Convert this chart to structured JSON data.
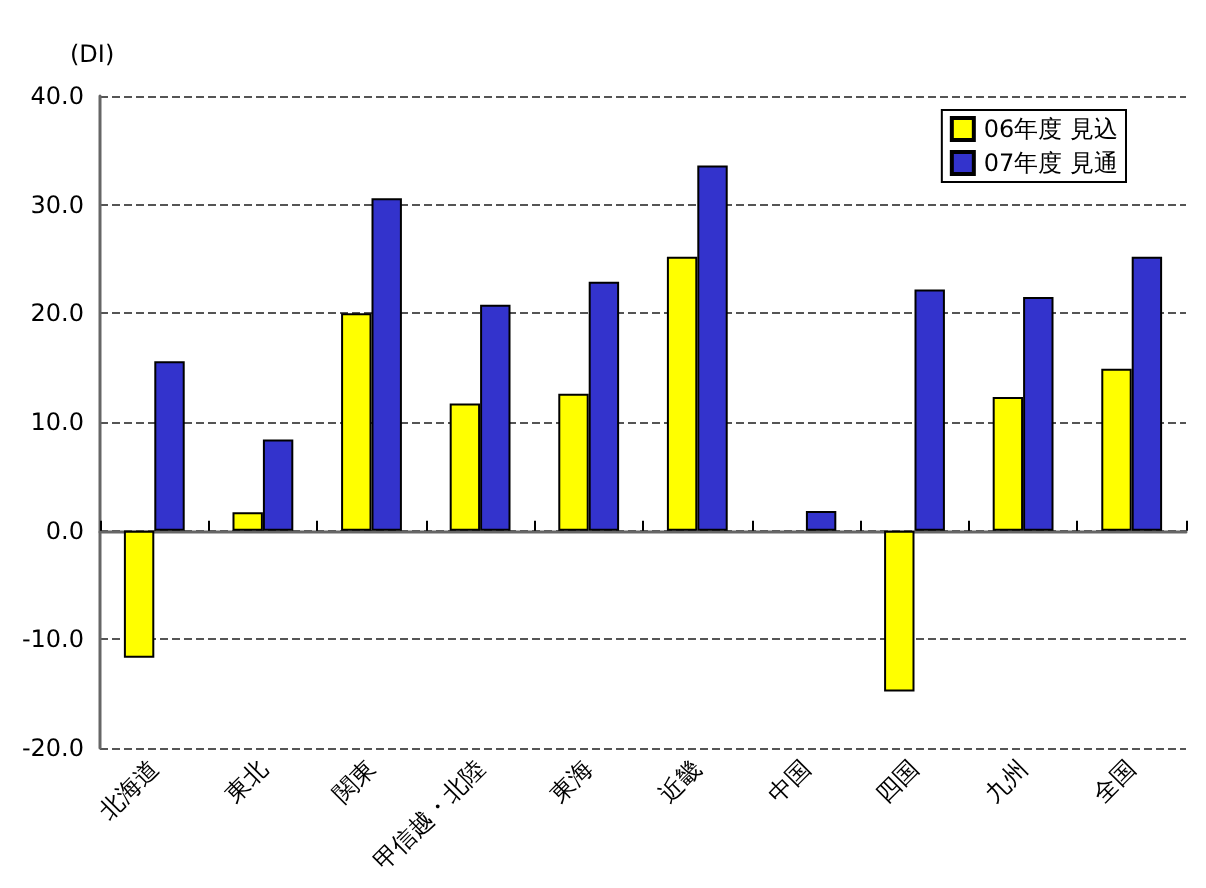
{
  "chart_data": {
    "type": "bar",
    "ylabel": "(DI)",
    "categories": [
      "北海道",
      "東北",
      "関東",
      "甲信越・北陸",
      "東海",
      "近畿",
      "中国",
      "四国",
      "九州",
      "全国"
    ],
    "series": [
      {
        "name": "06年度 見込",
        "color": "#ffff00",
        "values": [
          -11.7,
          1.7,
          20.0,
          11.7,
          12.6,
          25.2,
          null,
          -14.8,
          12.3,
          14.9
        ]
      },
      {
        "name": "07年度 見通",
        "color": "#3333cc",
        "values": [
          15.6,
          8.4,
          30.6,
          20.8,
          22.9,
          33.6,
          1.8,
          22.2,
          21.5,
          25.2
        ]
      }
    ],
    "ylim": [
      -20,
      40
    ],
    "yticks": [
      {
        "value": -20,
        "label": "-20.0"
      },
      {
        "value": -10,
        "label": "-10.0"
      },
      {
        "value": 0,
        "label": "0.0"
      },
      {
        "value": 10,
        "label": "10.0"
      },
      {
        "value": 20,
        "label": "20.0"
      },
      {
        "value": 30,
        "label": "30.0"
      },
      {
        "value": 40,
        "label": "40.0"
      }
    ],
    "grid": "y",
    "legend": "top right",
    "line_style": "dashed"
  }
}
